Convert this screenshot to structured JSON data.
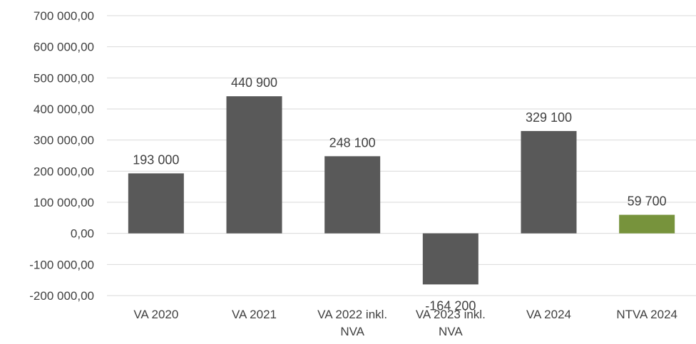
{
  "chart_data": {
    "type": "bar",
    "categories": [
      [
        "VA 2020"
      ],
      [
        "VA 2021"
      ],
      [
        "VA 2022 inkl.",
        "NVA"
      ],
      [
        "VA 2023 inkl.",
        "NVA"
      ],
      [
        "VA 2024"
      ],
      [
        "NTVA 2024"
      ]
    ],
    "values": [
      193000,
      440900,
      248100,
      -164200,
      329100,
      59700
    ],
    "value_labels": [
      "193 000",
      "440 900",
      "248 100",
      "-164 200",
      "329 100",
      "59 700"
    ],
    "bar_colors": [
      "#595959",
      "#595959",
      "#595959",
      "#595959",
      "#595959",
      "#77933c"
    ],
    "ylim": [
      -200000,
      700000
    ],
    "y_ticks": [
      {
        "value": 700000,
        "label": "700 000,00"
      },
      {
        "value": 600000,
        "label": "600 000,00"
      },
      {
        "value": 500000,
        "label": "500 000,00"
      },
      {
        "value": 400000,
        "label": "400 000,00"
      },
      {
        "value": 300000,
        "label": "300 000,00"
      },
      {
        "value": 200000,
        "label": "200 000,00"
      },
      {
        "value": 100000,
        "label": "100 000,00"
      },
      {
        "value": 0,
        "label": "0,00"
      },
      {
        "value": -100000,
        "label": "-100 000,00"
      },
      {
        "value": -200000,
        "label": "-200 000,00"
      }
    ],
    "grid": true,
    "legend": "none",
    "title": "",
    "xlabel": "",
    "ylabel": ""
  },
  "colors": {
    "gridline": "#d9d9d9",
    "text": "#404040"
  }
}
